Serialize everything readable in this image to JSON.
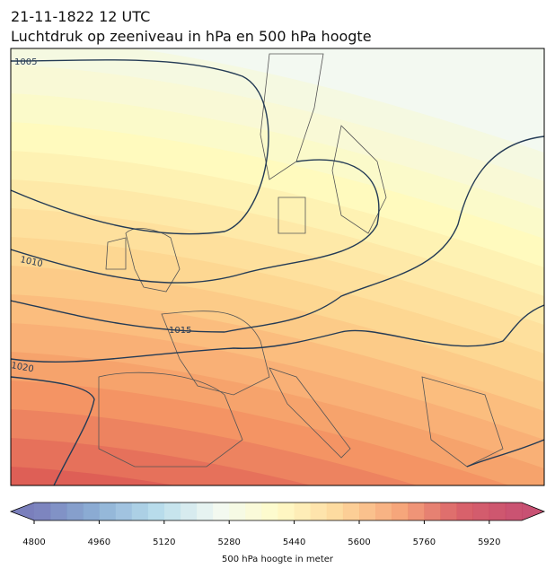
{
  "header": {
    "title": "21-11-1822 12 UTC",
    "subtitle": "Luchtdruk op zeeniveau in hPa en 500 hPa hoogte"
  },
  "map": {
    "isobars": [
      1005,
      1010,
      1015,
      1020
    ]
  },
  "colorbar": {
    "range": [
      4800,
      6000
    ],
    "step": 40,
    "ticks": [
      4800,
      4960,
      5120,
      5280,
      5440,
      5600,
      5760,
      5920
    ],
    "label": "500 hPa hoogte in meter"
  }
}
